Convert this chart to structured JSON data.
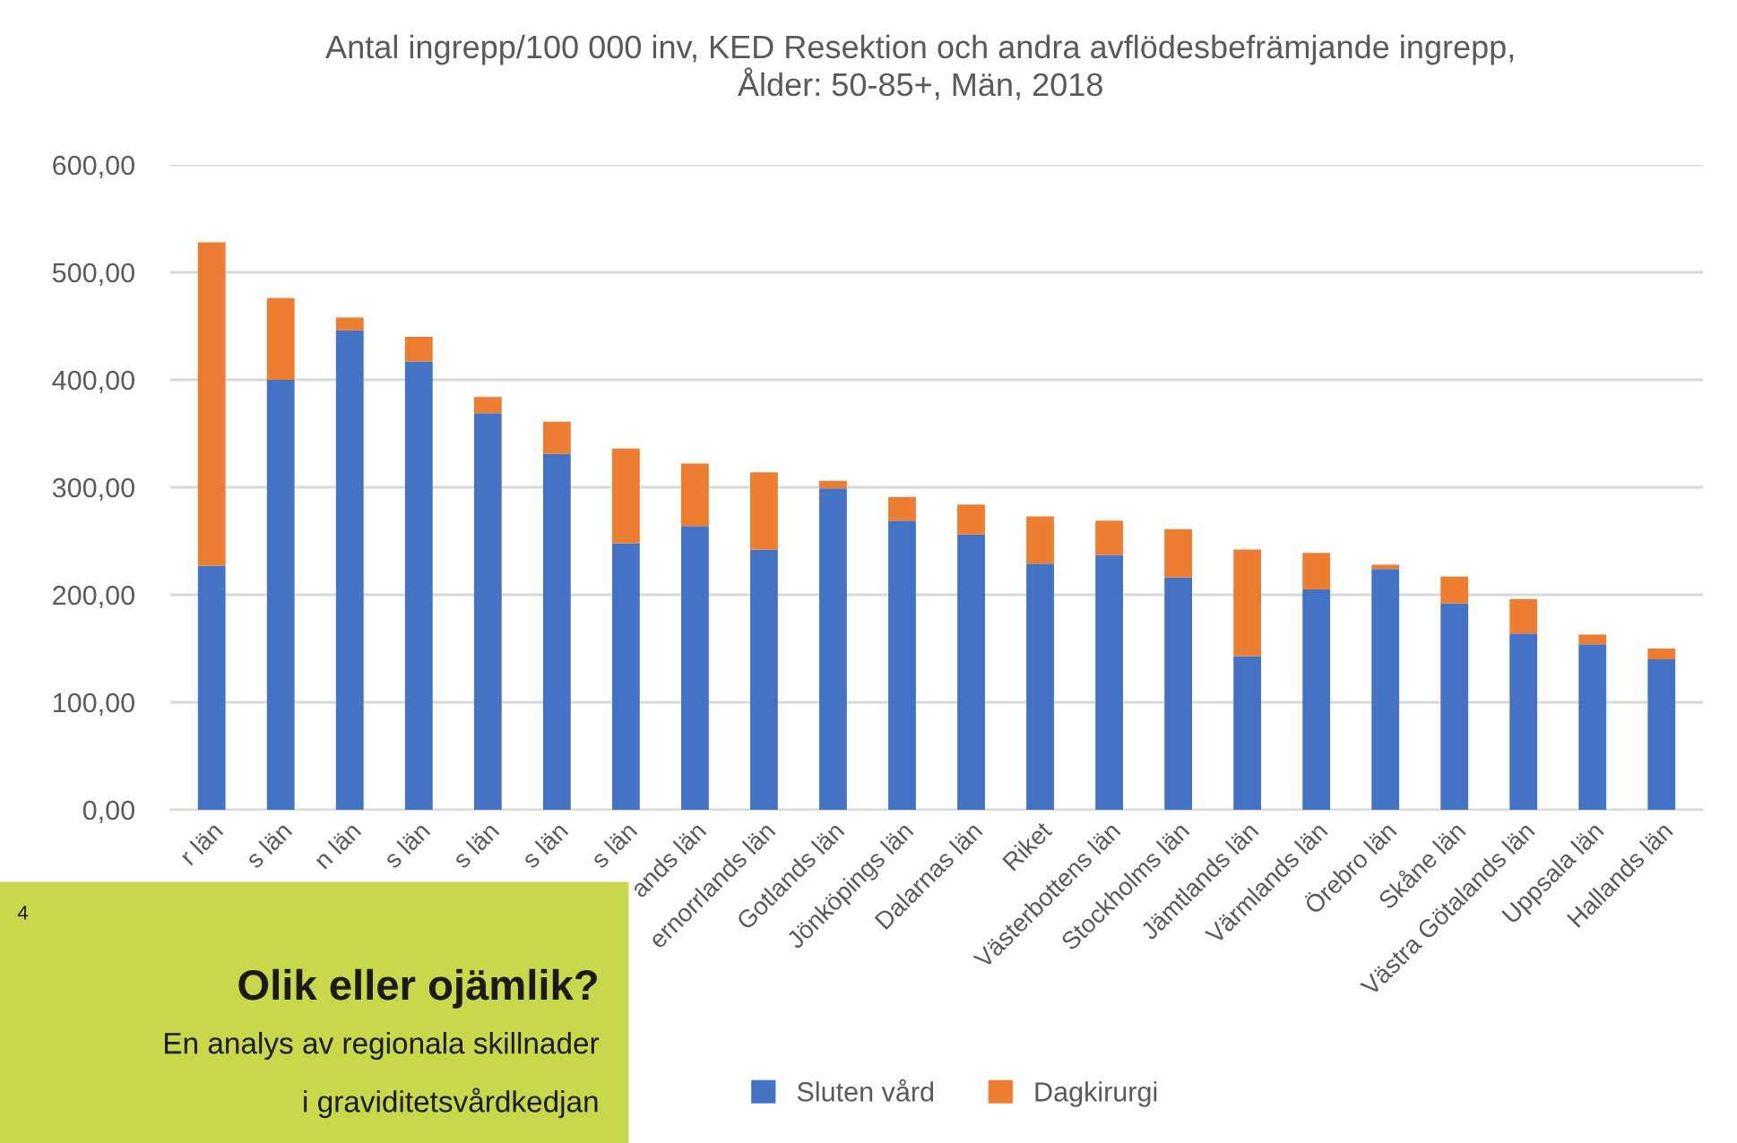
{
  "chart_data": {
    "type": "bar",
    "stacked": true,
    "title": "Antal ingrepp/100 000 inv, KED Resektion och andra avflödesbefrämjande ingrepp,\nÅlder: 50-85+, Män, 2018",
    "categories": [
      "r län",
      "s län",
      "n län",
      "s län",
      "s län",
      "s län",
      "s län",
      "ands län",
      "ernorrlands län",
      "Gotlands län",
      "Jönköpings län",
      "Dalarnas län",
      "Riket",
      "Västerbottens län",
      "Stockholms län",
      "Jämtlands län",
      "Värmlands län",
      "Örebro län",
      "Skåne län",
      "Västra Götalands län",
      "Uppsala län",
      "Hallands län"
    ],
    "series": [
      {
        "name": "Sluten vård",
        "color": "#4472c4",
        "values": [
          227,
          400,
          446,
          417,
          369,
          331,
          248,
          264,
          242,
          299,
          269,
          256,
          229,
          237,
          216,
          143,
          205,
          224,
          192,
          164,
          154,
          140
        ]
      },
      {
        "name": "Dagkirurgi",
        "color": "#ed7d31",
        "values": [
          301,
          76,
          12,
          23,
          15,
          30,
          88,
          58,
          72,
          7,
          22,
          28,
          44,
          32,
          45,
          99,
          34,
          4,
          25,
          32,
          9,
          10
        ]
      }
    ],
    "ylim": [
      0,
      600
    ],
    "yticks": [
      {
        "value": 0,
        "label": "0,00"
      },
      {
        "value": 100,
        "label": "100,00"
      },
      {
        "value": 200,
        "label": "200,00"
      },
      {
        "value": 300,
        "label": "300,00"
      },
      {
        "value": 400,
        "label": "400,00"
      },
      {
        "value": 500,
        "label": "500,00"
      },
      {
        "value": 600,
        "label": "600,00"
      }
    ],
    "grid": "y",
    "legend": "bottom",
    "annotations": [
      "4",
      "Olik eller ojämlik?",
      "En analys av regionala skillnader",
      "i graviditetsvårdkedjan"
    ]
  }
}
